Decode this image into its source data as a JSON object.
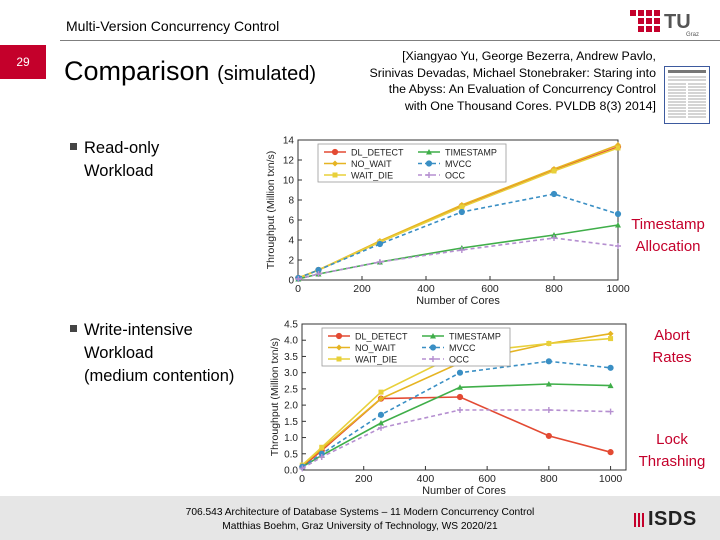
{
  "header": {
    "title": "Multi-Version Concurrency Control",
    "slide_number": "29",
    "logo_text": "TU",
    "logo_sub": "Graz"
  },
  "title": {
    "main": "Comparison",
    "sub": "(simulated)"
  },
  "citation": [
    "[Xiangyao Yu, George Bezerra, Andrew Pavlo,",
    "Srinivas Devadas, Michael Stonebraker: Staring into",
    "the Abyss: An Evaluation of Concurrency Control",
    "with One Thousand Cores. PVLDB 8(3) 2014]"
  ],
  "bullets": [
    {
      "lines": [
        "Read-only",
        "Workload"
      ]
    },
    {
      "lines": [
        "Write-intensive",
        "Workload",
        "(medium contention)"
      ]
    }
  ],
  "side_labels": [
    {
      "lines": [
        "Timestamp",
        "Allocation"
      ]
    },
    {
      "lines": [
        "Abort",
        "Rates"
      ]
    },
    {
      "lines": [
        "Lock",
        "Thrashing"
      ]
    }
  ],
  "footer": {
    "line1": "706.543 Architecture of Database Systems – 11 Modern Concurrency Control",
    "line2": "Matthias Boehm, Graz University of Technology, WS 2020/21",
    "logo": "ISDS"
  },
  "colors": {
    "accent": "#c4002b",
    "DL_DETECT": "#e34a33",
    "NO_WAIT": "#e6b422",
    "WAIT_DIE": "#e8d03a",
    "TIMESTAMP": "#3fae49",
    "MVCC": "#3a8fc4",
    "OCC": "#b58fd0"
  },
  "chart_data": [
    {
      "type": "line",
      "xlabel": "Number of Cores",
      "ylabel": "Throughput (Million txn/s)",
      "xlim": [
        0,
        1000
      ],
      "ylim": [
        0,
        14
      ],
      "xticks": [
        0,
        200,
        400,
        600,
        800,
        1000
      ],
      "yticks": [
        0,
        2,
        4,
        6,
        8,
        10,
        12,
        14
      ],
      "legend_position": "top-left",
      "series": [
        {
          "name": "DL_DETECT",
          "x": [
            1,
            64,
            256,
            512,
            800,
            1000
          ],
          "y": [
            0.2,
            1.0,
            3.8,
            7.4,
            11.0,
            13.3
          ]
        },
        {
          "name": "NO_WAIT",
          "x": [
            1,
            64,
            256,
            512,
            800,
            1000
          ],
          "y": [
            0.2,
            1.0,
            3.9,
            7.5,
            11.1,
            13.5
          ]
        },
        {
          "name": "WAIT_DIE",
          "x": [
            1,
            64,
            256,
            512,
            800,
            1000
          ],
          "y": [
            0.2,
            1.0,
            3.8,
            7.3,
            10.9,
            13.2
          ]
        },
        {
          "name": "TIMESTAMP",
          "x": [
            1,
            64,
            256,
            512,
            800,
            1000
          ],
          "y": [
            0.1,
            0.6,
            1.8,
            3.2,
            4.5,
            5.5
          ]
        },
        {
          "name": "MVCC",
          "x": [
            1,
            64,
            256,
            512,
            800,
            1000
          ],
          "y": [
            0.2,
            1.0,
            3.6,
            6.8,
            8.6,
            6.6
          ]
        },
        {
          "name": "OCC",
          "x": [
            1,
            64,
            256,
            512,
            800,
            1000
          ],
          "y": [
            0.1,
            0.6,
            1.8,
            3.0,
            4.2,
            3.4
          ]
        }
      ]
    },
    {
      "type": "line",
      "xlabel": "Number of Cores",
      "ylabel": "Throughput (Million txn/s)",
      "xlim": [
        0,
        1050
      ],
      "ylim": [
        0,
        4.5
      ],
      "xticks": [
        0,
        200,
        400,
        600,
        800,
        1000
      ],
      "yticks": [
        0.0,
        0.5,
        1.0,
        1.5,
        2.0,
        2.5,
        3.0,
        3.5,
        4.0,
        4.5
      ],
      "legend_position": "top-left",
      "series": [
        {
          "name": "DL_DETECT",
          "x": [
            1,
            64,
            256,
            512,
            800,
            1000
          ],
          "y": [
            0.1,
            0.6,
            2.2,
            2.25,
            1.05,
            0.55
          ]
        },
        {
          "name": "NO_WAIT",
          "x": [
            1,
            64,
            256,
            512,
            800,
            1000
          ],
          "y": [
            0.15,
            0.65,
            2.2,
            3.3,
            3.9,
            4.2
          ]
        },
        {
          "name": "WAIT_DIE",
          "x": [
            1,
            64,
            256,
            512,
            800,
            1000
          ],
          "y": [
            0.15,
            0.7,
            2.4,
            3.6,
            3.9,
            4.05
          ]
        },
        {
          "name": "TIMESTAMP",
          "x": [
            1,
            64,
            256,
            512,
            800,
            1000
          ],
          "y": [
            0.1,
            0.45,
            1.45,
            2.55,
            2.65,
            2.6
          ]
        },
        {
          "name": "MVCC",
          "x": [
            1,
            64,
            256,
            512,
            800,
            1000
          ],
          "y": [
            0.1,
            0.5,
            1.7,
            3.0,
            3.35,
            3.15
          ]
        },
        {
          "name": "OCC",
          "x": [
            1,
            64,
            256,
            512,
            800,
            1000
          ],
          "y": [
            0.05,
            0.4,
            1.3,
            1.85,
            1.85,
            1.8
          ]
        }
      ]
    }
  ]
}
